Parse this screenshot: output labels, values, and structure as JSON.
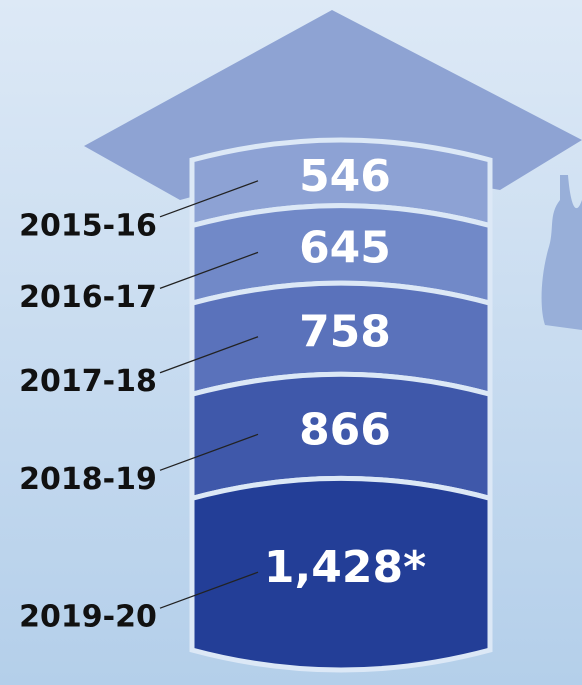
{
  "chart_data": {
    "type": "stacked-cylinder",
    "categories": [
      "2015-16",
      "2016-17",
      "2017-18",
      "2018-19",
      "2019-20"
    ],
    "values": [
      546,
      645,
      758,
      866,
      1428
    ],
    "value_labels": [
      "546",
      "645",
      "758",
      "866",
      "1,428*"
    ],
    "colors": [
      "#8da2d4",
      "#7189c8",
      "#5a72bb",
      "#3f58aa",
      "#233e97"
    ]
  }
}
